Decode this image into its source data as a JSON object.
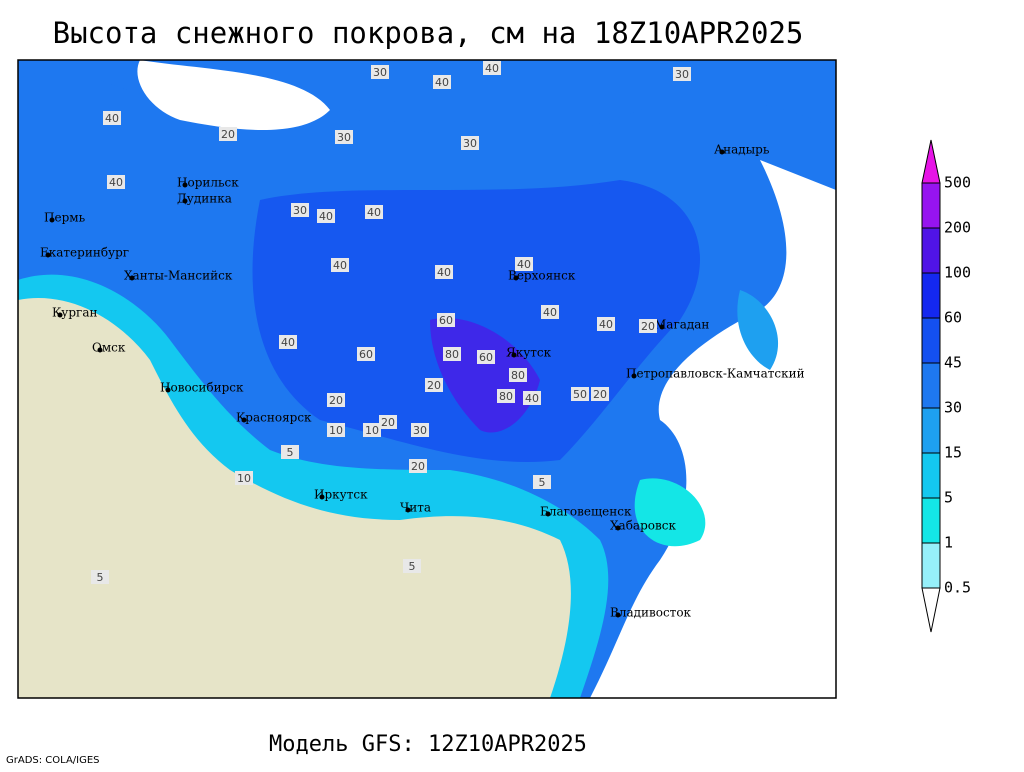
{
  "header": {
    "title": "Высота снежного покрова, см на 18Z10APR2025"
  },
  "footer": {
    "model": "Модель GFS: 12Z10APR2025",
    "credit": "GrADS: COLA/IGES"
  },
  "cities": [
    "Пермь",
    "Екатеринбург",
    "Курган",
    "Омск",
    "Новосибирск",
    "Красноярск",
    "Иркутск",
    "Чита",
    "Ханты-Мансийск",
    "Норильск",
    "Дудинка",
    "Верхоянск",
    "Якутск",
    "Магадан",
    "Анадырь",
    "Петропавловск-Камчатский",
    "Благовещенск",
    "Хабаровск",
    "Владивосток"
  ],
  "contour_labels": [
    30,
    40,
    40,
    30,
    30,
    20,
    30,
    30,
    40,
    40,
    40,
    40,
    40,
    40,
    40,
    60,
    80,
    60,
    80,
    80,
    40,
    40,
    20,
    20,
    20,
    10,
    10,
    10,
    5,
    5,
    5,
    5,
    20,
    40,
    30,
    60,
    40,
    20,
    50,
    20
  ],
  "legend": {
    "levels": [
      0.5,
      1,
      5,
      15,
      30,
      45,
      60,
      100,
      200,
      500
    ],
    "colors": [
      "#ffffff",
      "#96f0fa",
      "#14e6e6",
      "#14c8f0",
      "#1ea0f0",
      "#1e78f0",
      "#1450f0",
      "#1428f0",
      "#5014e6",
      "#9614f0",
      "#e614e6"
    ]
  }
}
